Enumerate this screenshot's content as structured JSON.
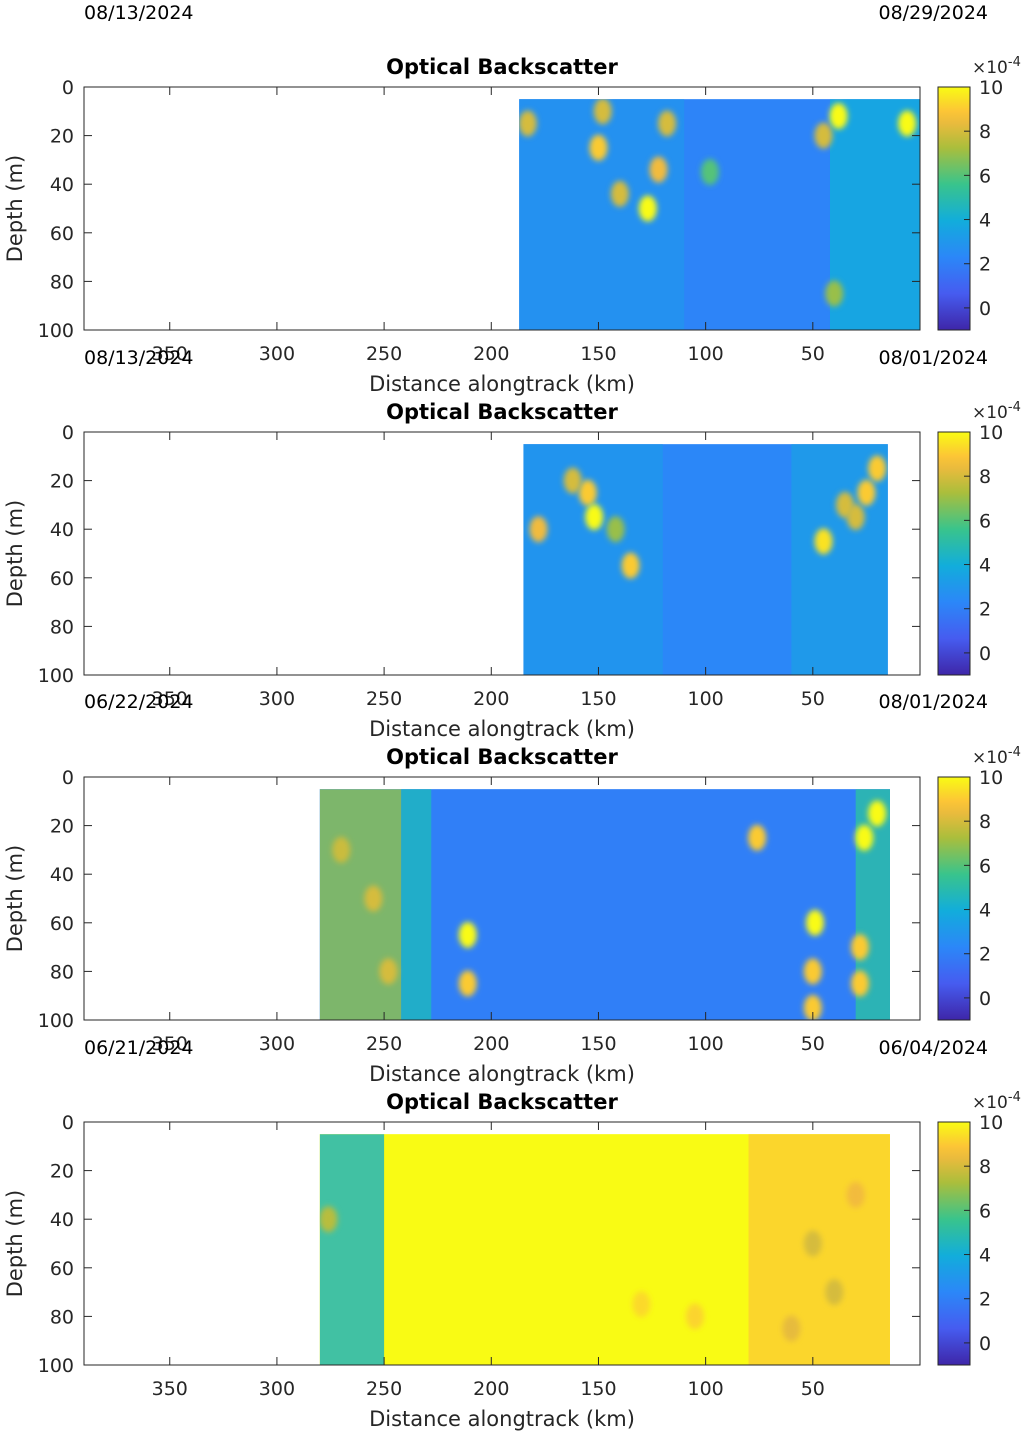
{
  "chart_data": [
    {
      "type": "heatmap",
      "title": "Optical Backscatter",
      "xlabel": "Distance alongtrack (km)",
      "ylabel": "Depth (m)",
      "xlim": [
        390,
        0
      ],
      "ylim": [
        0,
        100
      ],
      "xticks": [
        "350",
        "300",
        "250",
        "200",
        "150",
        "100",
        "50"
      ],
      "yticks": [
        "0",
        "20",
        "40",
        "60",
        "80",
        "100"
      ],
      "date_left": "08/13/2024",
      "date_right": "08/29/2024",
      "data_extent": {
        "x": [
          187,
          0
        ],
        "depth": [
          5,
          100
        ]
      },
      "colorbar": {
        "label": "×10-4",
        "range": [
          -1,
          10
        ],
        "ticks": [
          "0",
          "2",
          "4",
          "6",
          "8",
          "10"
        ]
      },
      "background_level": 2.2,
      "bands": [
        {
          "x": [
            42,
            0
          ],
          "level": 3.8
        },
        {
          "x": [
            187,
            110
          ],
          "level": 2.8
        }
      ],
      "spots": [
        {
          "x": 150,
          "depth": 25,
          "level": 9
        },
        {
          "x": 148,
          "depth": 10,
          "level": 8
        },
        {
          "x": 140,
          "depth": 44,
          "level": 8
        },
        {
          "x": 127,
          "depth": 50,
          "level": 10
        },
        {
          "x": 122,
          "depth": 34,
          "level": 8.5
        },
        {
          "x": 118,
          "depth": 15,
          "level": 8
        },
        {
          "x": 183,
          "depth": 15,
          "level": 8
        },
        {
          "x": 38,
          "depth": 12,
          "level": 10
        },
        {
          "x": 45,
          "depth": 20,
          "level": 8
        },
        {
          "x": 6,
          "depth": 15,
          "level": 10
        },
        {
          "x": 98,
          "depth": 35,
          "level": 6
        },
        {
          "x": 40,
          "depth": 85,
          "level": 7
        }
      ]
    },
    {
      "type": "heatmap",
      "title": "Optical Backscatter",
      "xlabel": "Distance alongtrack (km)",
      "ylabel": "Depth (m)",
      "xlim": [
        390,
        0
      ],
      "ylim": [
        0,
        100
      ],
      "xticks": [
        "350",
        "300",
        "250",
        "200",
        "150",
        "100",
        "50"
      ],
      "yticks": [
        "0",
        "20",
        "40",
        "60",
        "80",
        "100"
      ],
      "date_left": "08/13/2024",
      "date_right": "08/01/2024",
      "data_extent": {
        "x": [
          185,
          15
        ],
        "depth": [
          5,
          100
        ]
      },
      "colorbar": {
        "label": "×10-4",
        "range": [
          -1,
          10
        ],
        "ticks": [
          "0",
          "2",
          "4",
          "6",
          "8",
          "10"
        ]
      },
      "background_level": 2.3,
      "bands": [
        {
          "x": [
            185,
            120
          ],
          "level": 3.0
        },
        {
          "x": [
            60,
            15
          ],
          "level": 3.2
        }
      ],
      "spots": [
        {
          "x": 155,
          "depth": 25,
          "level": 9
        },
        {
          "x": 152,
          "depth": 35,
          "level": 10
        },
        {
          "x": 162,
          "depth": 20,
          "level": 8
        },
        {
          "x": 178,
          "depth": 40,
          "level": 8.5
        },
        {
          "x": 135,
          "depth": 55,
          "level": 9
        },
        {
          "x": 45,
          "depth": 45,
          "level": 9.5
        },
        {
          "x": 35,
          "depth": 30,
          "level": 8
        },
        {
          "x": 25,
          "depth": 25,
          "level": 9
        },
        {
          "x": 30,
          "depth": 35,
          "level": 8
        },
        {
          "x": 20,
          "depth": 15,
          "level": 9
        },
        {
          "x": 142,
          "depth": 40,
          "level": 7
        }
      ]
    },
    {
      "type": "heatmap",
      "title": "Optical Backscatter",
      "xlabel": "Distance alongtrack (km)",
      "ylabel": "Depth (m)",
      "xlim": [
        390,
        0
      ],
      "ylim": [
        0,
        100
      ],
      "xticks": [
        "350",
        "300",
        "250",
        "200",
        "150",
        "100",
        "50"
      ],
      "yticks": [
        "0",
        "20",
        "40",
        "60",
        "80",
        "100"
      ],
      "date_left": "06/22/2024",
      "date_right": "08/01/2024",
      "data_extent": {
        "x": [
          280,
          14
        ],
        "depth": [
          5,
          100
        ]
      },
      "colorbar": {
        "label": "×10-4",
        "range": [
          -1,
          10
        ],
        "ticks": [
          "0",
          "2",
          "4",
          "6",
          "8",
          "10"
        ]
      },
      "background_level": 2.0,
      "bands": [
        {
          "x": [
            280,
            242
          ],
          "level": 6.8
        },
        {
          "x": [
            242,
            228
          ],
          "level": 4.5
        },
        {
          "x": [
            30,
            14
          ],
          "level": 5.0
        }
      ],
      "spots": [
        {
          "x": 270,
          "depth": 30,
          "level": 7.8
        },
        {
          "x": 255,
          "depth": 50,
          "level": 8.0
        },
        {
          "x": 248,
          "depth": 80,
          "level": 8.0
        },
        {
          "x": 211,
          "depth": 65,
          "level": 10
        },
        {
          "x": 211,
          "depth": 85,
          "level": 9
        },
        {
          "x": 76,
          "depth": 25,
          "level": 9
        },
        {
          "x": 49,
          "depth": 60,
          "level": 10
        },
        {
          "x": 50,
          "depth": 80,
          "level": 9
        },
        {
          "x": 50,
          "depth": 95,
          "level": 9
        },
        {
          "x": 28,
          "depth": 70,
          "level": 9
        },
        {
          "x": 20,
          "depth": 15,
          "level": 10
        },
        {
          "x": 26,
          "depth": 25,
          "level": 10
        },
        {
          "x": 28,
          "depth": 85,
          "level": 9
        }
      ]
    },
    {
      "type": "heatmap",
      "title": "Optical Backscatter",
      "xlabel": "Distance alongtrack (km)",
      "ylabel": "Depth (m)",
      "xlim": [
        390,
        0
      ],
      "ylim": [
        0,
        100
      ],
      "xticks": [
        "350",
        "300",
        "250",
        "200",
        "150",
        "100",
        "50"
      ],
      "yticks": [
        "0",
        "20",
        "40",
        "60",
        "80",
        "100"
      ],
      "date_left": "06/21/2024",
      "date_right": "06/04/2024",
      "data_extent": {
        "x": [
          280,
          14
        ],
        "depth": [
          5,
          100
        ]
      },
      "colorbar": {
        "label": "×10-4",
        "range": [
          -1,
          10
        ],
        "ticks": [
          "0",
          "2",
          "4",
          "6",
          "8",
          "10"
        ]
      },
      "background_level": 10,
      "bands": [
        {
          "x": [
            280,
            250
          ],
          "level": 4.6
        },
        {
          "x": [
            80,
            14
          ],
          "level": 9.1
        }
      ],
      "spots": [
        {
          "x": 276,
          "depth": 40,
          "level": 7.5
        },
        {
          "x": 50,
          "depth": 50,
          "level": 8
        },
        {
          "x": 40,
          "depth": 70,
          "level": 8
        },
        {
          "x": 60,
          "depth": 85,
          "level": 8.3
        },
        {
          "x": 30,
          "depth": 30,
          "level": 8.5
        },
        {
          "x": 105,
          "depth": 80,
          "level": 9.2
        },
        {
          "x": 130,
          "depth": 75,
          "level": 9.3
        }
      ]
    }
  ]
}
